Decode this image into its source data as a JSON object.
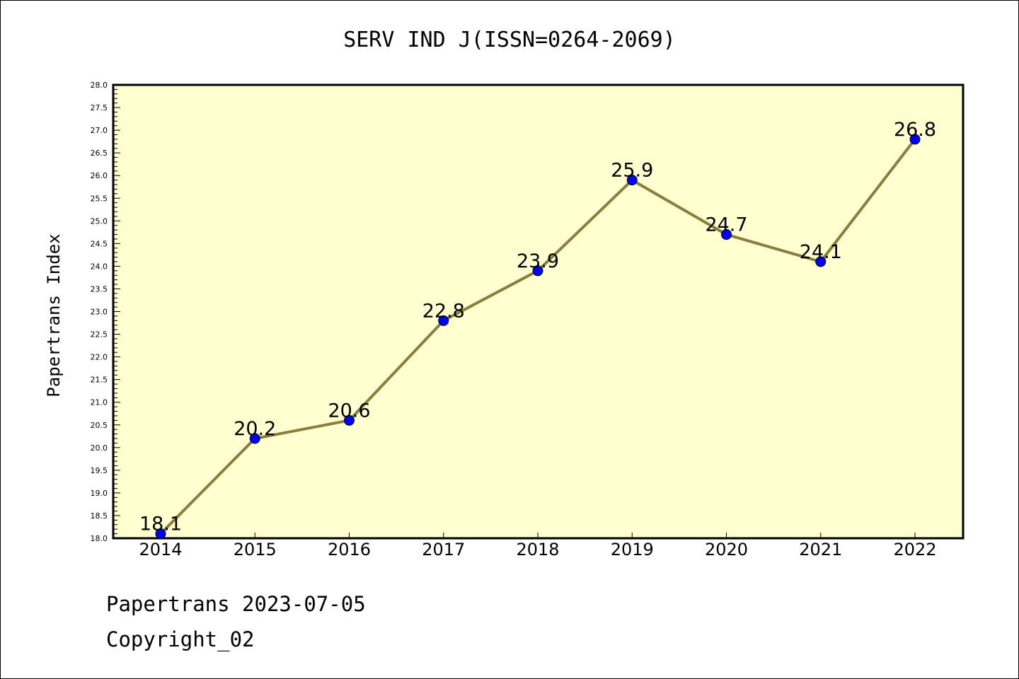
{
  "chart_data": {
    "type": "line",
    "title": "SERV IND J(ISSN=0264-2069)",
    "xlabel": "",
    "ylabel": "Papertrans Index",
    "categories": [
      "2014",
      "2015",
      "2016",
      "2017",
      "2018",
      "2019",
      "2020",
      "2021",
      "2022"
    ],
    "values": [
      18.1,
      20.2,
      20.6,
      22.8,
      23.9,
      25.9,
      24.7,
      24.1,
      26.8
    ],
    "data_labels": [
      "18.1",
      "20.2",
      "20.6",
      "22.8",
      "23.9",
      "25.9",
      "24.7",
      "24.1",
      "26.8"
    ],
    "ylim": [
      18.0,
      28.0
    ],
    "yticks": [
      "18.0",
      "18.5",
      "19.0",
      "19.5",
      "20.0",
      "20.5",
      "21.0",
      "21.5",
      "22.0",
      "22.5",
      "23.0",
      "23.5",
      "24.0",
      "24.5",
      "25.0",
      "25.5",
      "26.0",
      "26.5",
      "27.0",
      "27.5",
      "28.0"
    ],
    "grid": false,
    "colors": {
      "plot_bg": "#ffffd0",
      "line": "#8b7d3a",
      "marker": "#0000ff"
    }
  },
  "footer": {
    "line1": "Papertrans 2023-07-05",
    "line2": "Copyright_02"
  }
}
